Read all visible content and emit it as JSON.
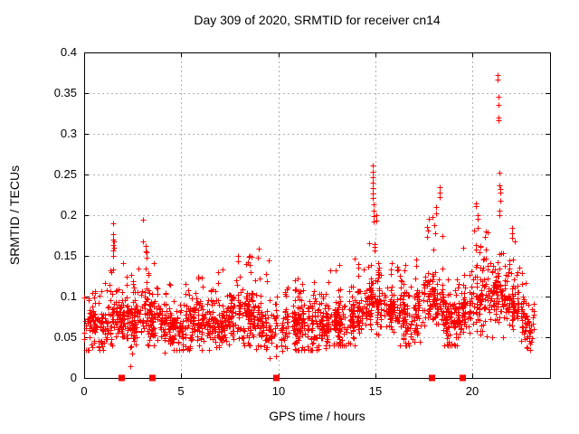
{
  "chart_data": {
    "type": "scatter",
    "title": "Day 309 of 2020, SRMTID for receiver cn14",
    "xlabel": "GPS time / hours",
    "ylabel": "SRMTID / TECUs",
    "xlim": [
      0,
      24
    ],
    "ylim": [
      0,
      0.4
    ],
    "xticks": [
      0,
      5,
      10,
      15,
      20
    ],
    "yticks": [
      0,
      0.05,
      0.1,
      0.15,
      0.2,
      0.25,
      0.3,
      0.35,
      0.4
    ],
    "grid": true,
    "legend": "none",
    "marker": {
      "shape": "plus",
      "color": "#ff0000",
      "size": 7
    },
    "colors": {
      "points": "#ff0000",
      "grid": "#b0b0b0",
      "axis": "#000000",
      "background": "#ffffff"
    },
    "band_bins": [
      [
        0.0,
        0.5,
        40,
        0.035,
        0.062,
        0.13
      ],
      [
        0.5,
        1.0,
        50,
        0.035,
        0.06,
        0.115
      ],
      [
        1.0,
        1.5,
        50,
        0.035,
        0.068,
        0.135
      ],
      [
        1.5,
        2.0,
        55,
        0.03,
        0.075,
        0.15
      ],
      [
        2.0,
        2.5,
        55,
        0.015,
        0.068,
        0.14
      ],
      [
        2.5,
        3.0,
        50,
        0.04,
        0.07,
        0.135
      ],
      [
        3.0,
        3.5,
        55,
        0.04,
        0.078,
        0.15
      ],
      [
        3.5,
        4.0,
        50,
        0.04,
        0.072,
        0.155
      ],
      [
        4.0,
        4.5,
        50,
        0.03,
        0.06,
        0.12
      ],
      [
        4.5,
        5.0,
        50,
        0.035,
        0.058,
        0.105
      ],
      [
        5.0,
        5.5,
        50,
        0.035,
        0.06,
        0.125
      ],
      [
        5.5,
        6.0,
        55,
        0.04,
        0.066,
        0.135
      ],
      [
        6.0,
        6.5,
        50,
        0.035,
        0.064,
        0.125
      ],
      [
        6.5,
        7.0,
        50,
        0.035,
        0.062,
        0.14
      ],
      [
        7.0,
        7.5,
        50,
        0.03,
        0.066,
        0.15
      ],
      [
        7.5,
        8.0,
        55,
        0.04,
        0.072,
        0.155
      ],
      [
        8.0,
        8.5,
        55,
        0.04,
        0.075,
        0.16
      ],
      [
        8.5,
        9.0,
        55,
        0.04,
        0.076,
        0.165
      ],
      [
        9.0,
        9.5,
        45,
        0.03,
        0.062,
        0.14
      ],
      [
        9.5,
        10.0,
        35,
        0.025,
        0.05,
        0.1
      ],
      [
        10.0,
        10.5,
        40,
        0.03,
        0.052,
        0.115
      ],
      [
        10.5,
        11.0,
        50,
        0.035,
        0.057,
        0.12
      ],
      [
        11.0,
        11.5,
        55,
        0.035,
        0.06,
        0.13
      ],
      [
        11.5,
        12.0,
        55,
        0.035,
        0.06,
        0.125
      ],
      [
        12.0,
        12.5,
        55,
        0.035,
        0.062,
        0.12
      ],
      [
        12.5,
        13.0,
        55,
        0.04,
        0.065,
        0.14
      ],
      [
        13.0,
        13.5,
        55,
        0.04,
        0.066,
        0.14
      ],
      [
        13.5,
        14.0,
        50,
        0.04,
        0.07,
        0.15
      ],
      [
        14.0,
        14.5,
        50,
        0.045,
        0.08,
        0.16
      ],
      [
        14.5,
        15.0,
        50,
        0.05,
        0.09,
        0.17
      ],
      [
        15.0,
        15.5,
        55,
        0.05,
        0.09,
        0.175
      ],
      [
        15.5,
        16.0,
        55,
        0.045,
        0.08,
        0.15
      ],
      [
        16.0,
        16.5,
        50,
        0.04,
        0.07,
        0.14
      ],
      [
        16.5,
        17.0,
        45,
        0.04,
        0.065,
        0.13
      ],
      [
        17.0,
        17.5,
        45,
        0.045,
        0.08,
        0.15
      ],
      [
        17.5,
        18.0,
        55,
        0.05,
        0.095,
        0.2
      ],
      [
        18.0,
        18.5,
        55,
        0.05,
        0.095,
        0.19
      ],
      [
        18.5,
        19.0,
        50,
        0.04,
        0.068,
        0.13
      ],
      [
        19.0,
        19.5,
        50,
        0.04,
        0.072,
        0.14
      ],
      [
        19.5,
        20.0,
        55,
        0.045,
        0.085,
        0.16
      ],
      [
        20.0,
        20.5,
        55,
        0.05,
        0.095,
        0.185
      ],
      [
        20.5,
        21.0,
        55,
        0.05,
        0.098,
        0.2
      ],
      [
        21.0,
        21.5,
        55,
        0.055,
        0.105,
        0.21
      ],
      [
        21.5,
        22.0,
        55,
        0.05,
        0.098,
        0.17
      ],
      [
        22.0,
        22.5,
        55,
        0.045,
        0.088,
        0.175
      ],
      [
        22.5,
        23.0,
        50,
        0.035,
        0.068,
        0.13
      ],
      [
        23.0,
        23.2,
        12,
        0.04,
        0.06,
        0.1
      ]
    ],
    "spike_points": [
      [
        1.5,
        0.19
      ],
      [
        1.5,
        0.177
      ],
      [
        1.5,
        0.17
      ],
      [
        1.5,
        0.163
      ],
      [
        1.5,
        0.157
      ],
      [
        1.5,
        0.15
      ],
      [
        1.52,
        0.168
      ],
      [
        1.52,
        0.16
      ],
      [
        3.05,
        0.194
      ],
      [
        3.05,
        0.168
      ],
      [
        3.15,
        0.162
      ],
      [
        3.15,
        0.156
      ],
      [
        3.22,
        0.155
      ],
      [
        3.22,
        0.148
      ],
      [
        9.5,
        0.144
      ],
      [
        14.85,
        0.261
      ],
      [
        14.85,
        0.253
      ],
      [
        14.85,
        0.247
      ],
      [
        14.85,
        0.24
      ],
      [
        14.85,
        0.233
      ],
      [
        14.85,
        0.227
      ],
      [
        14.85,
        0.221
      ],
      [
        14.9,
        0.213
      ],
      [
        14.9,
        0.206
      ],
      [
        14.9,
        0.199
      ],
      [
        14.9,
        0.192
      ],
      [
        14.95,
        0.165
      ],
      [
        14.95,
        0.161
      ],
      [
        14.95,
        0.157
      ],
      [
        15.05,
        0.2
      ],
      [
        15.05,
        0.193
      ],
      [
        18.3,
        0.235
      ],
      [
        18.3,
        0.228
      ],
      [
        18.3,
        0.222
      ],
      [
        18.15,
        0.21
      ],
      [
        18.15,
        0.202
      ],
      [
        20.2,
        0.215
      ],
      [
        20.2,
        0.211
      ],
      [
        20.25,
        0.2
      ],
      [
        20.25,
        0.196
      ],
      [
        20.25,
        0.184
      ],
      [
        21.3,
        0.372
      ],
      [
        21.3,
        0.367
      ],
      [
        21.33,
        0.346
      ],
      [
        21.33,
        0.336
      ],
      [
        21.36,
        0.32
      ],
      [
        21.36,
        0.317
      ],
      [
        21.4,
        0.252
      ],
      [
        21.4,
        0.237
      ],
      [
        21.42,
        0.232
      ],
      [
        21.42,
        0.228
      ],
      [
        21.44,
        0.218
      ],
      [
        22.05,
        0.184
      ],
      [
        22.05,
        0.178
      ],
      [
        22.05,
        0.172
      ]
    ],
    "axis_markers": {
      "shape": "filled-square",
      "color": "#ff0000",
      "y": 0,
      "x": [
        1.9,
        3.5,
        9.9,
        17.9,
        19.5
      ]
    }
  }
}
